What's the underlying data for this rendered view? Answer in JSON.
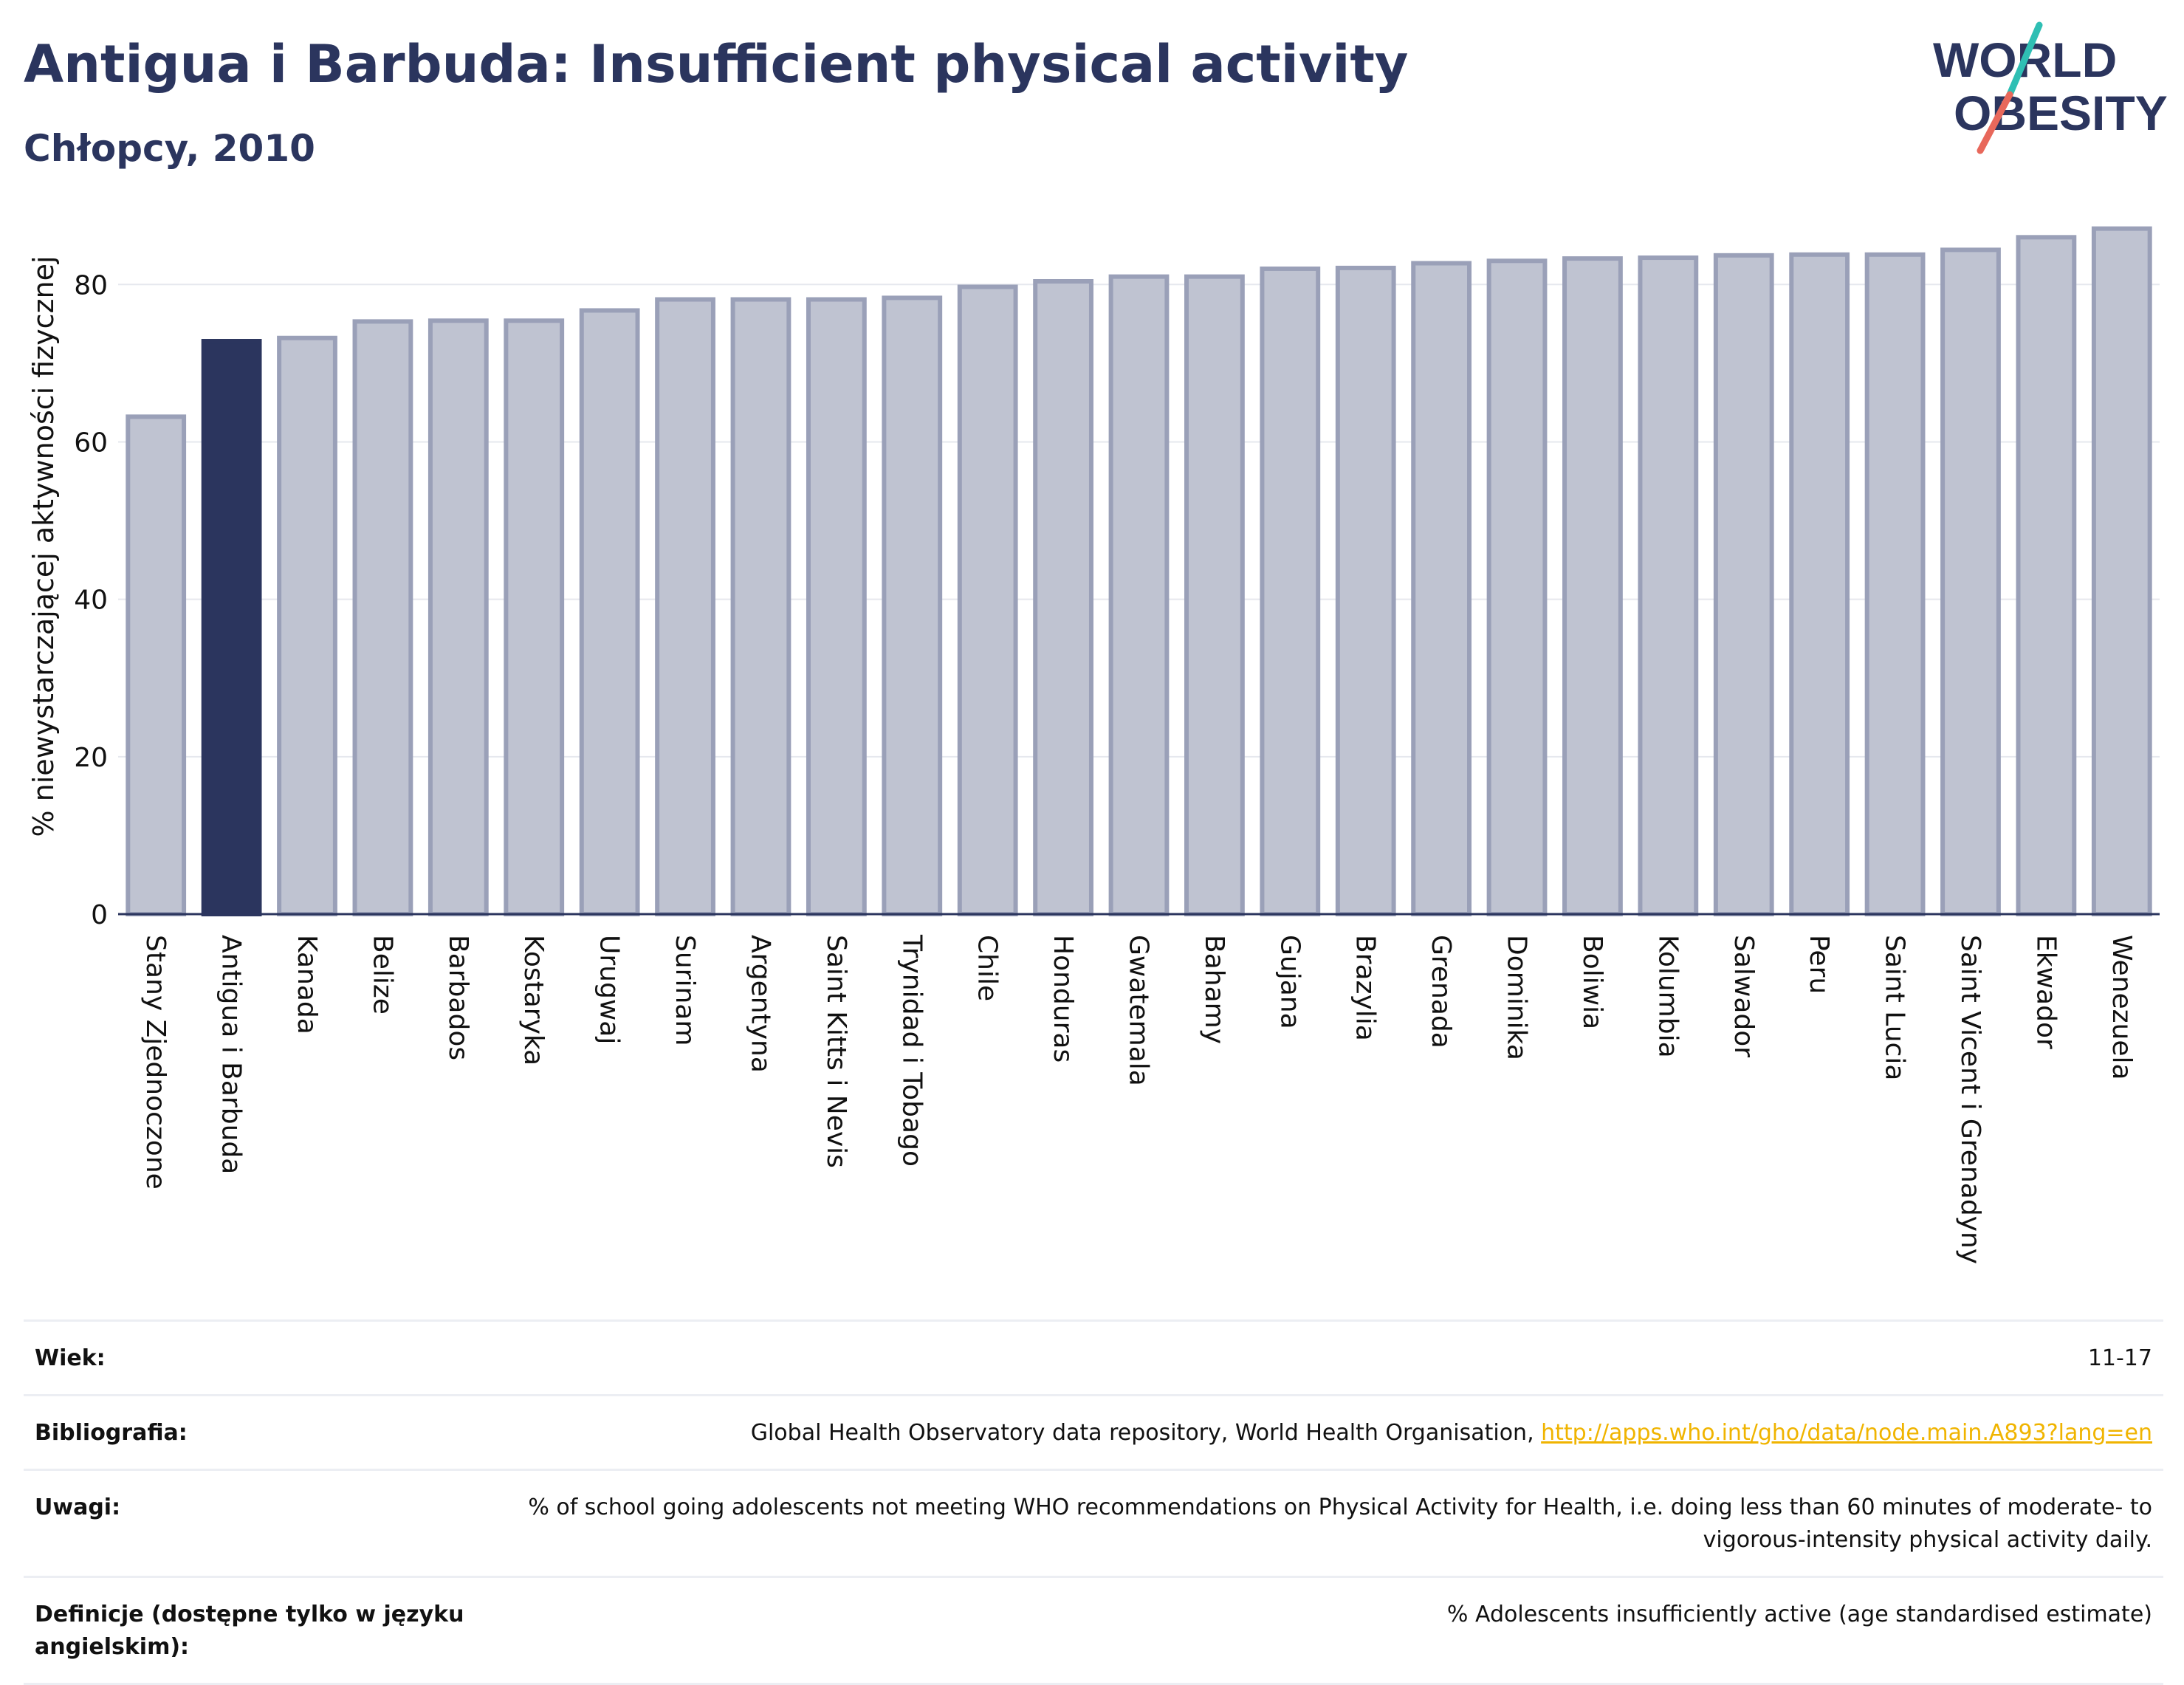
{
  "header": {
    "title": "Antigua i Barbuda: Insufficient physical activity",
    "subtitle": "Chłopcy, 2010"
  },
  "logo": {
    "line1": "WORLD",
    "line2": "OBESITY",
    "colors": {
      "text": "#2b355e",
      "slash_top": "#2fbfb4",
      "slash_bottom": "#e8685b"
    }
  },
  "chart_data": {
    "type": "bar",
    "ylabel": "% niewystarczającej aktywności fizycznej",
    "ylim": [
      0,
      88
    ],
    "yticks": [
      0,
      20,
      40,
      60,
      80
    ],
    "grid": true,
    "highlight": "Antigua i Barbuda",
    "colors": {
      "bar": "#bfc3d1",
      "bar_border": "#9aa0b8",
      "highlight": "#2b355e",
      "grid": "#e6e8ee",
      "axis": "#2b355e"
    },
    "categories": [
      "Stany Zjednoczone",
      "Antigua i Barbuda",
      "Kanada",
      "Belize",
      "Barbados",
      "Kostaryka",
      "Urugwaj",
      "Surinam",
      "Argentyna",
      "Saint Kitts i Nevis",
      "Trynidad i Tobago",
      "Chile",
      "Honduras",
      "Gwatemala",
      "Bahamy",
      "Gujana",
      "Brazylia",
      "Grenada",
      "Dominika",
      "Boliwia",
      "Kolumbia",
      "Salwador",
      "Peru",
      "Saint Lucia",
      "Saint Vicent i Grenadyny",
      "Ekwador",
      "Wenezuela"
    ],
    "values": [
      63.2,
      72.8,
      73.2,
      75.3,
      75.4,
      75.4,
      76.7,
      78.1,
      78.1,
      78.1,
      78.3,
      79.7,
      80.4,
      81.0,
      81.0,
      82.0,
      82.1,
      82.7,
      83.0,
      83.3,
      83.4,
      83.7,
      83.8,
      83.8,
      84.4,
      86.0,
      87.1
    ]
  },
  "info": {
    "rows": [
      {
        "label": "Wiek:",
        "value": "11-17"
      },
      {
        "label": "Bibliografia:",
        "value": "Global Health Observatory data repository, World Health Organisation, ",
        "link": "http://apps.who.int/gho/data/node.main.A893?lang=en"
      },
      {
        "label": "Uwagi:",
        "value": "% of school going adolescents not meeting WHO recommendations on Physical Activity for Health, i.e. doing less than 60 minutes of moderate- to vigorous-intensity physical activity daily."
      },
      {
        "label": "Definicje (dostępne tylko w języku angielskim):",
        "value": "% Adolescents insufficiently active (age standardised estimate)"
      }
    ]
  }
}
